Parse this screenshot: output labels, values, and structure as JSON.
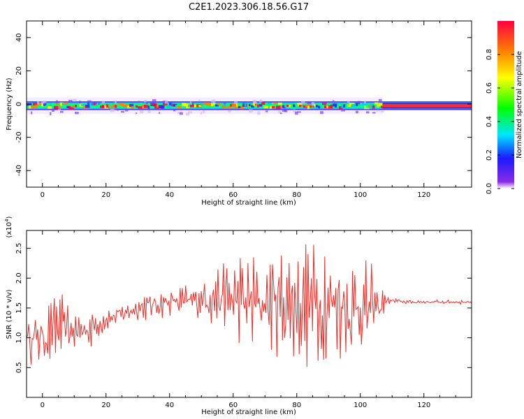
{
  "title": "C2E1.2023.306.18.56.G17",
  "chart_data": [
    {
      "type": "heatmap",
      "xlabel": "Height of straight line (km)",
      "ylabel": "Frequency (Hz)",
      "xlim": [
        -5,
        135
      ],
      "ylim": [
        -50,
        50
      ],
      "xticks": [
        0,
        20,
        40,
        60,
        80,
        100,
        120
      ],
      "yticks": [
        40,
        20,
        0,
        -20,
        -40
      ],
      "colorbar": {
        "label": "Normalized spectral amplitude",
        "range": [
          0,
          1
        ],
        "ticks": [
          "0.0",
          "0.2",
          "0.4",
          "0.6",
          "0.8"
        ]
      },
      "band_center_hz": -1,
      "segments": [
        {
          "x_start": -5,
          "x_end": 107,
          "core_halfwidth_hz": 2,
          "spread_hz": 5
        },
        {
          "x_start": 107,
          "x_end": 135,
          "core_halfwidth_hz": 2,
          "spread_hz": 2
        }
      ]
    },
    {
      "type": "line",
      "xlabel": "Height of straight line (km)",
      "ylabel": "SNR (10 * v/v)",
      "y_multiplier_label": "(x10",
      "y_multiplier_exp": "4",
      "xlim": [
        -5,
        135
      ],
      "ylim": [
        0,
        2.8
      ],
      "xticks": [
        0,
        20,
        40,
        60,
        80,
        100,
        120
      ],
      "yticks": [
        0.5,
        1.0,
        1.5,
        2.0,
        2.5
      ],
      "grid": false,
      "series": [
        {
          "color": "#e8302a",
          "x": [
            -5,
            0,
            5,
            10,
            15,
            20,
            25,
            30,
            35,
            40,
            45,
            50,
            55,
            60,
            65,
            70,
            75,
            80,
            85,
            88,
            90,
            93,
            95,
            100,
            105,
            108,
            110,
            115,
            120,
            125,
            130,
            135
          ],
          "y": [
            1.0,
            1.0,
            1.2,
            1.1,
            1.15,
            1.3,
            1.4,
            1.5,
            1.55,
            1.6,
            1.6,
            1.65,
            1.7,
            1.65,
            1.6,
            1.6,
            1.6,
            1.55,
            1.6,
            1.6,
            1.55,
            1.6,
            1.5,
            1.5,
            1.5,
            1.62,
            1.62,
            1.6,
            1.6,
            1.6,
            1.6,
            1.6
          ],
          "amplitude": [
            0.35,
            0.4,
            0.5,
            0.25,
            0.3,
            0.15,
            0.15,
            0.18,
            0.2,
            0.2,
            0.25,
            0.3,
            0.45,
            0.6,
            0.7,
            0.7,
            0.75,
            0.85,
            0.95,
            1.0,
            0.95,
            0.9,
            0.8,
            0.65,
            0.6,
            0.05,
            0.04,
            0.03,
            0.03,
            0.03,
            0.03,
            0.03
          ]
        }
      ]
    }
  ]
}
